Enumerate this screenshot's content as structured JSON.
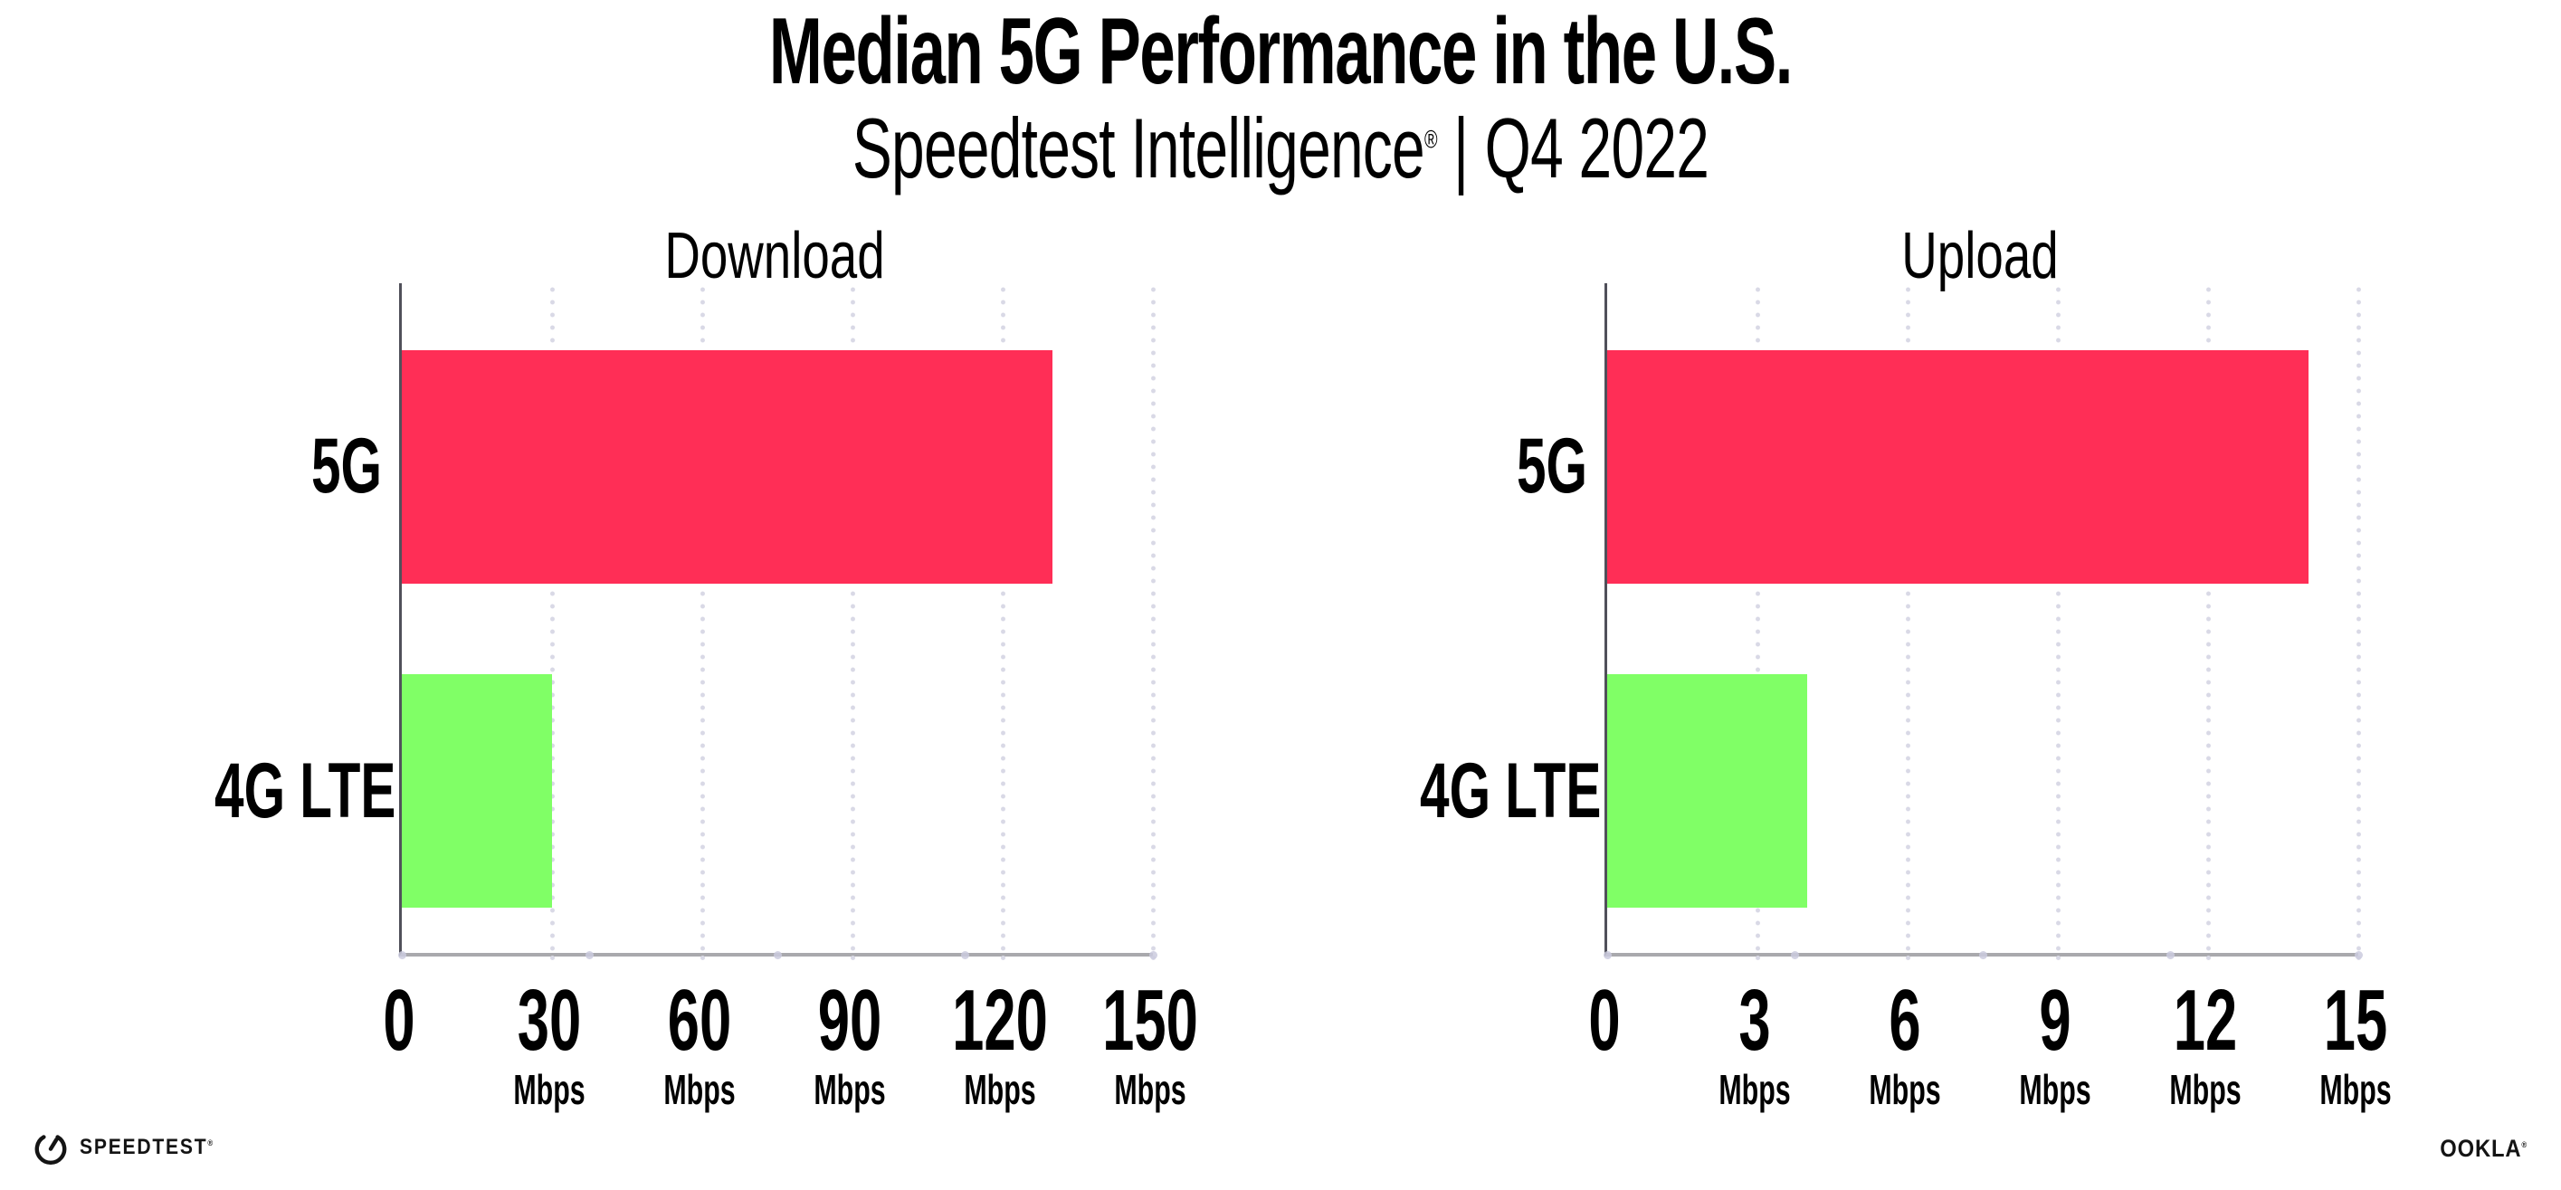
{
  "header": {
    "title": "Median 5G Performance in the U.S.",
    "subtitle": {
      "product": "Speedtest Intelligence",
      "reg_mark": "®",
      "separator": "|",
      "period": "Q4 2022"
    }
  },
  "chart_data": [
    {
      "type": "bar",
      "orientation": "horizontal",
      "title": "Download",
      "categories": [
        "5G",
        "4G LTE"
      ],
      "values": [
        130,
        30
      ],
      "unit": "Mbps",
      "xlim": [
        0,
        150
      ],
      "ticks": [
        0,
        30,
        60,
        90,
        120,
        150
      ],
      "bar_colors": [
        "#FF2E56",
        "#80FF66"
      ],
      "grid": "dotted-vertical",
      "legend_position": "none"
    },
    {
      "type": "bar",
      "orientation": "horizontal",
      "title": "Upload",
      "categories": [
        "5G",
        "4G LTE"
      ],
      "values": [
        14,
        4
      ],
      "unit": "Mbps",
      "xlim": [
        0,
        15
      ],
      "ticks": [
        0,
        3,
        6,
        9,
        12,
        15
      ],
      "bar_colors": [
        "#FF2E56",
        "#80FF66"
      ],
      "grid": "dotted-vertical",
      "legend_position": "none"
    }
  ],
  "colors": {
    "background": "#FFFFFF",
    "text": "#000000",
    "axis_y": "#50505A",
    "axis_x": "#A9A9AD",
    "grid_dot": "#D9D9E6",
    "axis_minor_dot": "#CBCBDE",
    "logo": "#141414"
  },
  "footer": {
    "speedtest": {
      "icon": "speedtest-gauge-icon",
      "label": "SPEEDTEST",
      "mark": "®"
    },
    "ookla": {
      "label": "OOKLA",
      "mark": "®"
    }
  }
}
